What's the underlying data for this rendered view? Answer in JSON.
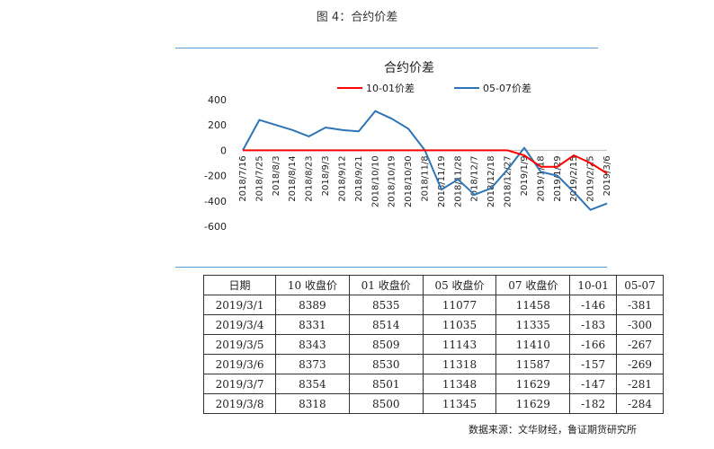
{
  "figure_caption": "图 4：合约价差",
  "source_note": "数据来源：文华财经，鲁证期货研究所",
  "chart_data": {
    "type": "line",
    "title": "合约价差",
    "ylim": [
      -600,
      400
    ],
    "yticks": [
      "400",
      "200",
      "0",
      "-200",
      "-400",
      "-600"
    ],
    "x_labels": [
      "2018/7/16",
      "2018/7/25",
      "2018/8/3",
      "2018/8/14",
      "2018/8/23",
      "2018/9/3",
      "2018/9/12",
      "2018/9/21",
      "2018/10/10",
      "2018/10/19",
      "2018/10/30",
      "2018/11/8",
      "2018/11/19",
      "2018/11/28",
      "2018/12/7",
      "2018/12/18",
      "2018/12/27",
      "2019/1/9",
      "2019/1/18",
      "2019/1/29",
      "2019/2/15",
      "2019/2/25",
      "2019/3/6"
    ],
    "grid": false,
    "legend": "top",
    "series": [
      {
        "name": "10-01价差",
        "color": "#ff0000",
        "values": [
          0,
          0,
          0,
          0,
          0,
          0,
          0,
          0,
          0,
          0,
          0,
          0,
          0,
          0,
          0,
          0,
          0,
          -40,
          -130,
          -130,
          -40,
          -100,
          -182
        ]
      },
      {
        "name": "05-07价差",
        "color": "#2e75b6",
        "values": [
          0,
          240,
          200,
          160,
          110,
          180,
          160,
          150,
          310,
          250,
          170,
          0,
          -310,
          -230,
          -350,
          -300,
          -150,
          20,
          -170,
          -200,
          -330,
          -470,
          -420
        ]
      }
    ]
  },
  "table": {
    "headers": [
      "日期",
      "10 收盘价",
      "01 收盘价",
      "05 收盘价",
      "07 收盘价",
      "10-01",
      "05-07"
    ],
    "rows": [
      [
        "2019/3/1",
        "8389",
        "8535",
        "11077",
        "11458",
        "-146",
        "-381"
      ],
      [
        "2019/3/4",
        "8331",
        "8514",
        "11035",
        "11335",
        "-183",
        "-300"
      ],
      [
        "2019/3/5",
        "8343",
        "8509",
        "11143",
        "11410",
        "-166",
        "-267"
      ],
      [
        "2019/3/6",
        "8373",
        "8530",
        "11318",
        "11587",
        "-157",
        "-269"
      ],
      [
        "2019/3/7",
        "8354",
        "8501",
        "11348",
        "11629",
        "-147",
        "-281"
      ],
      [
        "2019/3/8",
        "8318",
        "8500",
        "11345",
        "11629",
        "-182",
        "-284"
      ]
    ]
  }
}
